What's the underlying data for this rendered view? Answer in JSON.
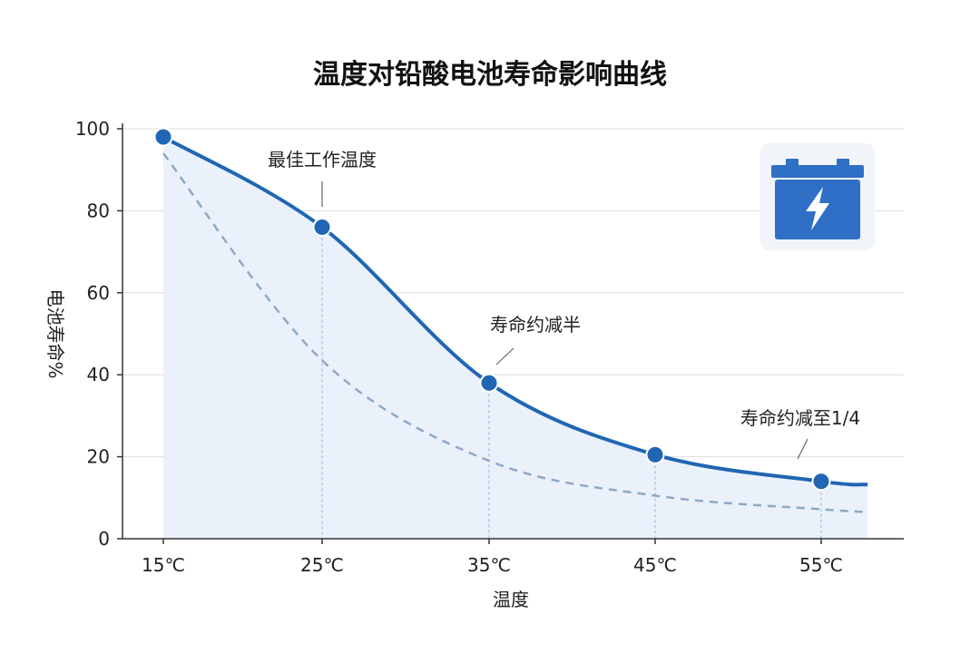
{
  "chart_data": {
    "type": "line",
    "title": "温度对铅酸电池寿命影响曲线",
    "xlabel": "温度",
    "ylabel": "电池寿命%",
    "categories": [
      "15℃",
      "25℃",
      "35℃",
      "45℃",
      "55℃"
    ],
    "x": [
      15,
      25,
      35,
      45,
      55
    ],
    "ylim": [
      0,
      100
    ],
    "xlim": [
      15,
      58
    ],
    "yticks": [
      0,
      20,
      40,
      60,
      80,
      100
    ],
    "grid": true,
    "series": [
      {
        "style": "solid",
        "color": "#2066b4",
        "x": [
          15,
          25,
          35,
          45,
          55,
          57.8
        ],
        "values": [
          98,
          76,
          38,
          20.5,
          14,
          13.2
        ],
        "markers": [
          true,
          true,
          true,
          true,
          true,
          false
        ]
      },
      {
        "style": "dashed",
        "color": "#8ea8c8",
        "x": [
          15,
          25,
          35,
          45,
          55,
          57.8
        ],
        "values": [
          94,
          43.5,
          19,
          10.5,
          7.2,
          6.5
        ],
        "markers": [
          false,
          false,
          false,
          false,
          false,
          false
        ]
      }
    ],
    "annotations": [
      {
        "text": "最佳工作温度",
        "x": 25,
        "y": 76
      },
      {
        "text": "寿命约减半",
        "x": 35,
        "y": 38
      },
      {
        "text": "寿命约减至1/4",
        "x": 55,
        "y": 14
      }
    ],
    "icon": "battery-icon",
    "colors": {
      "line": "#2066b4",
      "fill": "#e6eff9",
      "dashed": "#8ea8c8",
      "icon": "#2f6fc6"
    }
  }
}
